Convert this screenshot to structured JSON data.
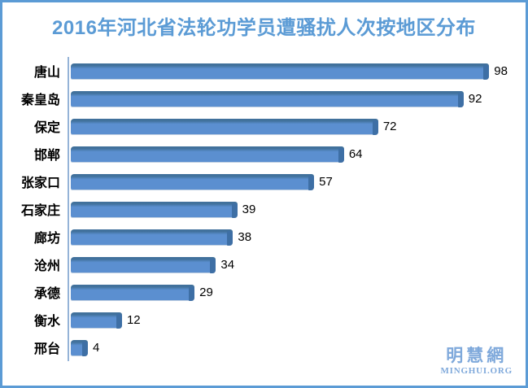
{
  "chart_data": {
    "type": "bar",
    "orientation": "horizontal",
    "title": "2016年河北省法轮功学员遭骚扰人次按地区分布",
    "categories": [
      "唐山",
      "秦皇岛",
      "保定",
      "邯郸",
      "张家口",
      "石家庄",
      "廊坊",
      "沧州",
      "承德",
      "衡水",
      "邢台"
    ],
    "values": [
      98,
      92,
      72,
      64,
      57,
      39,
      38,
      34,
      29,
      12,
      4
    ],
    "xlabel": "",
    "ylabel": "",
    "xlim": [
      0,
      105
    ],
    "grid": false,
    "legend": false,
    "data_labels": true,
    "bar_order": "descending"
  },
  "logo": {
    "chinese": "明慧網",
    "latin": "MINGHUI.ORG"
  },
  "colors": {
    "title": "#5B9BD5",
    "border": "#5B9BD5",
    "bar_fill": "#5B8FD0",
    "bar_top": "#41719C",
    "bar_end": "#3E6FA5",
    "axis_line": "#95B3D7",
    "value_text": "#000000",
    "label_text": "#000000",
    "logo": "#7FA9DB",
    "background": "#FFFFFF"
  }
}
